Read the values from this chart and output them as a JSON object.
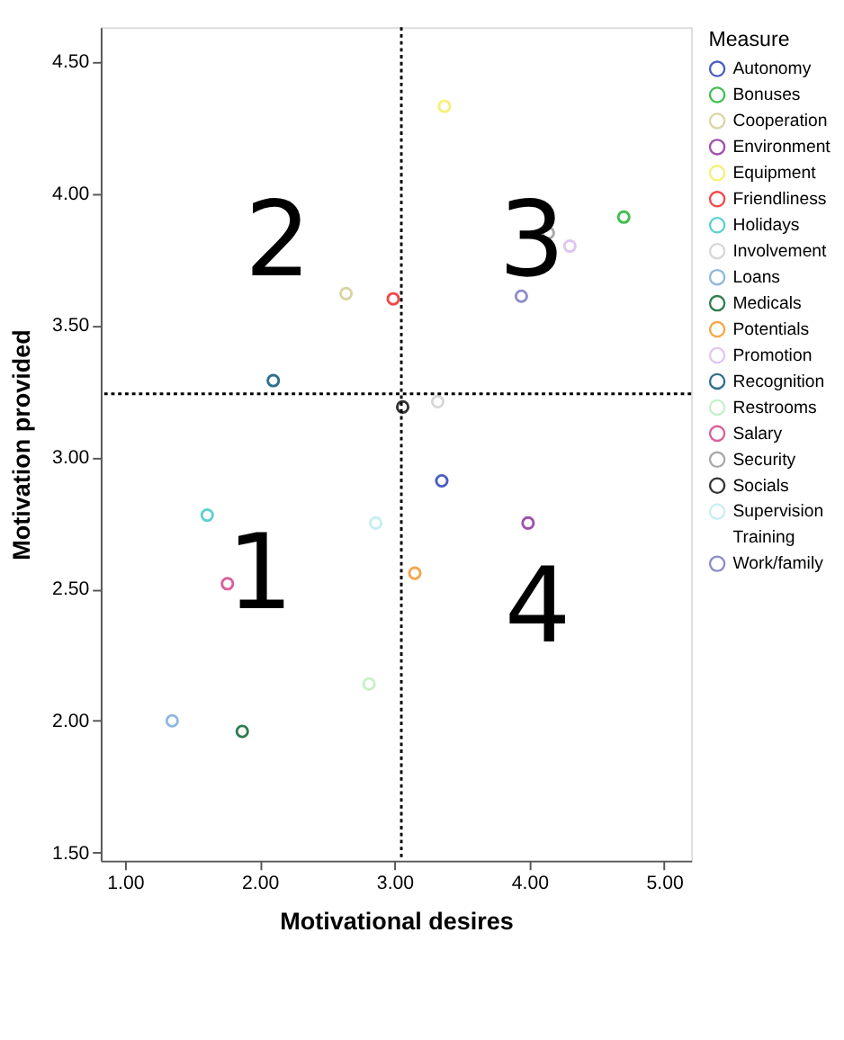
{
  "chart_data": {
    "type": "scatter",
    "xlabel": "Motivational desires",
    "ylabel": "Motivation provided",
    "legend_title": "Measure",
    "legend": "right",
    "marker": "circle",
    "grid": false,
    "xlim": [
      0.82,
      5.2
    ],
    "ylim": [
      1.47,
      4.63
    ],
    "xticks": [
      {
        "value": 1,
        "label": "1.00"
      },
      {
        "value": 2,
        "label": "2.00"
      },
      {
        "value": 3,
        "label": "3.00"
      },
      {
        "value": 4,
        "label": "4.00"
      },
      {
        "value": 5,
        "label": "5.00"
      }
    ],
    "yticks": [
      {
        "value": 1.5,
        "label": "1.50"
      },
      {
        "value": 2,
        "label": "2.00"
      },
      {
        "value": 2.5,
        "label": "2.50"
      },
      {
        "value": 3,
        "label": "3.00"
      },
      {
        "value": 3.5,
        "label": "3.50"
      },
      {
        "value": 4,
        "label": "4.00"
      },
      {
        "value": 4.5,
        "label": "4.50"
      }
    ],
    "series": [
      {
        "name": "Autonomy",
        "color": "#4a5fc1",
        "x": [
          3.35
        ],
        "values": [
          2.91
        ]
      },
      {
        "name": "Bonuses",
        "color": "#3fbf4f",
        "x": [
          4.7
        ],
        "values": [
          3.91
        ]
      },
      {
        "name": "Cooperation",
        "color": "#d9d6a6",
        "x": [
          2.64
        ],
        "values": [
          3.62
        ]
      },
      {
        "name": "Environment",
        "color": "#a04fb0",
        "x": [
          3.99
        ],
        "values": [
          2.75
        ]
      },
      {
        "name": "Equipment",
        "color": "#f5f07a",
        "x": [
          3.37
        ],
        "values": [
          4.33
        ]
      },
      {
        "name": "Friendliness",
        "color": "#f04848",
        "x": [
          2.99
        ],
        "values": [
          3.6
        ]
      },
      {
        "name": "Holidays",
        "color": "#5fd0d0",
        "x": [
          1.61
        ],
        "values": [
          2.78
        ]
      },
      {
        "name": "Involvement",
        "color": "#d8d8d8",
        "x": [
          3.32
        ],
        "values": [
          3.21
        ]
      },
      {
        "name": "Loans",
        "color": "#8fb8e0",
        "x": [
          1.35
        ],
        "values": [
          2.0
        ]
      },
      {
        "name": "Medicals",
        "color": "#2e7d4f",
        "x": [
          1.87
        ],
        "values": [
          1.96
        ]
      },
      {
        "name": "Potentials",
        "color": "#f5a64a",
        "x": [
          3.15
        ],
        "values": [
          2.56
        ]
      },
      {
        "name": "Promotion",
        "color": "#e0c6f0",
        "x": [
          4.3
        ],
        "values": [
          3.8
        ]
      },
      {
        "name": "Recognition",
        "color": "#2f6f8f",
        "x": [
          2.1
        ],
        "values": [
          3.29
        ]
      },
      {
        "name": "Restrooms",
        "color": "#c8f0c8",
        "x": [
          2.81
        ],
        "values": [
          2.14
        ]
      },
      {
        "name": "Salary",
        "color": "#d9609a",
        "x": [
          1.76
        ],
        "values": [
          2.52
        ]
      },
      {
        "name": "Security",
        "color": "#a8a8a8",
        "x": [
          4.14
        ],
        "values": [
          3.85
        ]
      },
      {
        "name": "Socials",
        "color": "#333333",
        "x": [
          3.06
        ],
        "values": [
          3.19
        ]
      },
      {
        "name": "Supervision",
        "color": "#c8eef2",
        "x": [
          2.86
        ],
        "values": [
          2.75
        ]
      },
      {
        "name": "Training",
        "color": null,
        "x": [
          null
        ],
        "values": [
          null
        ]
      },
      {
        "name": "Work/family",
        "color": "#8c8cc8",
        "x": [
          3.94
        ],
        "values": [
          3.61
        ]
      }
    ],
    "ref_lines": [
      {
        "axis": "x",
        "value": 3.05,
        "line_style": "dotted",
        "color": "#000000"
      },
      {
        "axis": "y",
        "value": 3.24,
        "line_style": "dotted",
        "color": "#000000"
      }
    ],
    "annotations": [
      "2",
      "3",
      "1",
      "4"
    ]
  }
}
